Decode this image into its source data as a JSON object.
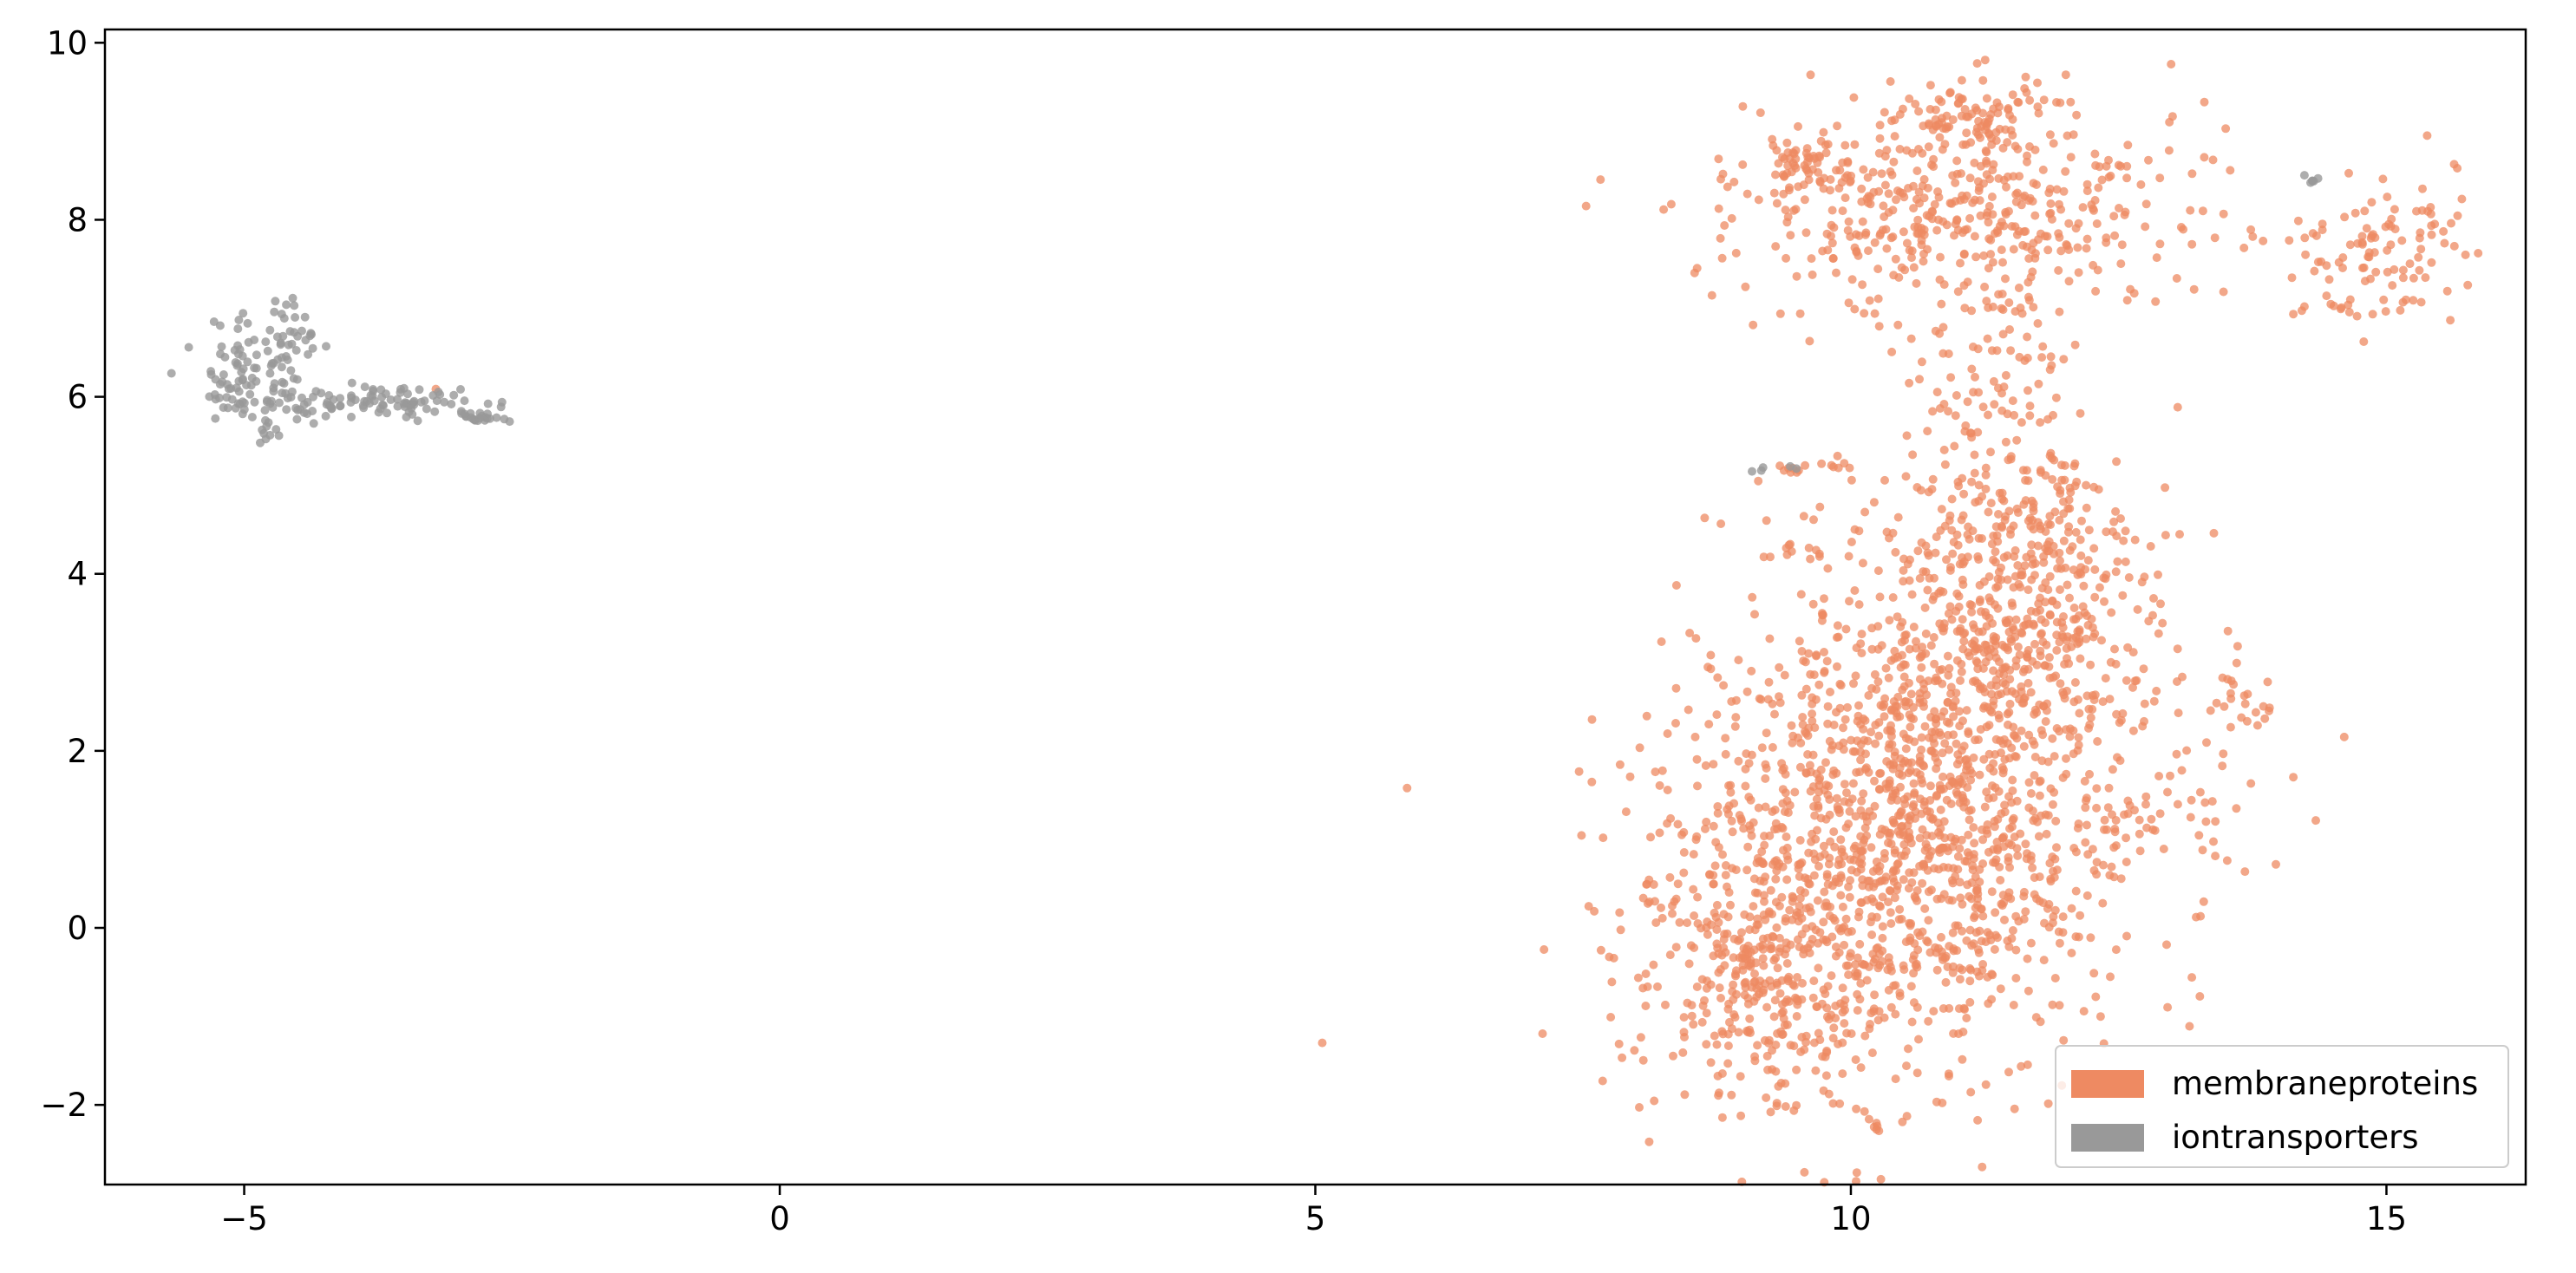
{
  "chart_data": {
    "type": "scatter",
    "title": "",
    "xlabel": "",
    "ylabel": "",
    "xlim": [
      -6.3,
      16.3
    ],
    "ylim": [
      -2.9,
      10.15
    ],
    "x_ticks": [
      {
        "value": -5,
        "label": "−5"
      },
      {
        "value": 0,
        "label": "0"
      },
      {
        "value": 5,
        "label": "5"
      },
      {
        "value": 10,
        "label": "10"
      },
      {
        "value": 15,
        "label": "15"
      }
    ],
    "y_ticks": [
      {
        "value": -2,
        "label": "−2"
      },
      {
        "value": 0,
        "label": "0"
      },
      {
        "value": 2,
        "label": "2"
      },
      {
        "value": 4,
        "label": "4"
      },
      {
        "value": 6,
        "label": "6"
      },
      {
        "value": 8,
        "label": "8"
      },
      {
        "value": 10,
        "label": "10"
      }
    ],
    "grid": false,
    "legend_position": "bottom-right",
    "series": [
      {
        "name": "membraneproteins",
        "color": "#EE8A62",
        "point_opacity": 0.75,
        "clusters": [
          {
            "cx": 10.6,
            "cy": 1.3,
            "sx": 1.1,
            "sy": 1.55,
            "n": 1700,
            "rot": -0.35
          },
          {
            "cx": 11.5,
            "cy": 4.0,
            "sx": 0.6,
            "sy": 1.0,
            "n": 380,
            "rot": 0.0
          },
          {
            "cx": 9.2,
            "cy": -0.6,
            "sx": 0.45,
            "sy": 0.7,
            "n": 220,
            "rot": 0.0
          },
          {
            "cx": 11.0,
            "cy": 8.1,
            "sx": 1.05,
            "sy": 0.6,
            "n": 450,
            "rot": 0.0
          },
          {
            "cx": 11.2,
            "cy": 9.2,
            "sx": 0.35,
            "sy": 0.22,
            "n": 90,
            "rot": 0.0
          },
          {
            "cx": 9.6,
            "cy": 8.6,
            "sx": 0.3,
            "sy": 0.18,
            "n": 60,
            "rot": 0.0
          },
          {
            "cx": 11.3,
            "cy": 6.3,
            "sx": 0.4,
            "sy": 0.4,
            "n": 50,
            "rot": 0.0
          },
          {
            "cx": 14.9,
            "cy": 7.6,
            "sx": 0.38,
            "sy": 0.45,
            "n": 110,
            "rot": 0.0
          },
          {
            "cx": 13.6,
            "cy": 2.5,
            "sx": 0.2,
            "sy": 0.2,
            "n": 20,
            "rot": 0.0
          },
          {
            "cx": 13.0,
            "cy": 1.3,
            "sx": 0.3,
            "sy": 0.2,
            "n": 20,
            "rot": 0.0
          },
          {
            "cx": 9.65,
            "cy": 5.2,
            "sx": 0.25,
            "sy": 0.03,
            "n": 14,
            "rot": 0.0
          },
          {
            "cx": 9.5,
            "cy": 4.25,
            "sx": 0.15,
            "sy": 0.05,
            "n": 10,
            "rot": 0.0
          },
          {
            "cx": 10.25,
            "cy": -2.27,
            "sx": 0.03,
            "sy": 0.05,
            "n": 5,
            "rot": 0.0
          },
          {
            "cx": 8.2,
            "cy": 0.35,
            "sx": 0.12,
            "sy": 0.1,
            "n": 8,
            "rot": 0.0
          },
          {
            "cx": -3.2,
            "cy": 6.1,
            "sx": 0.01,
            "sy": 0.01,
            "n": 1,
            "rot": 0.0
          }
        ]
      },
      {
        "name": "iontransporters",
        "color": "#999999",
        "point_opacity": 0.8,
        "clusters": [
          {
            "cx": -3.9,
            "cy": 5.95,
            "sx": 0.55,
            "sy": 0.09,
            "n": 110,
            "rot": 0.0
          },
          {
            "cx": -4.8,
            "cy": 6.5,
            "sx": 0.3,
            "sy": 0.25,
            "n": 80,
            "rot": 0.0
          },
          {
            "cx": -5.1,
            "cy": 6.0,
            "sx": 0.12,
            "sy": 0.15,
            "n": 25,
            "rot": 0.0
          },
          {
            "cx": -4.8,
            "cy": 5.6,
            "sx": 0.1,
            "sy": 0.08,
            "n": 10,
            "rot": 0.0
          },
          {
            "cx": -2.75,
            "cy": 5.78,
            "sx": 0.15,
            "sy": 0.03,
            "n": 20,
            "rot": 0.0
          },
          {
            "cx": 14.3,
            "cy": 8.43,
            "sx": 0.05,
            "sy": 0.03,
            "n": 6,
            "rot": 0.0
          },
          {
            "cx": 9.1,
            "cy": 5.2,
            "sx": 0.05,
            "sy": 0.02,
            "n": 3,
            "rot": 0.0
          },
          {
            "cx": 9.45,
            "cy": 5.22,
            "sx": 0.03,
            "sy": 0.02,
            "n": 2,
            "rot": 0.0
          }
        ]
      }
    ],
    "legend": [
      {
        "label": "membraneproteins",
        "color": "#EE8A62"
      },
      {
        "label": "iontransporters",
        "color": "#999999"
      }
    ]
  }
}
